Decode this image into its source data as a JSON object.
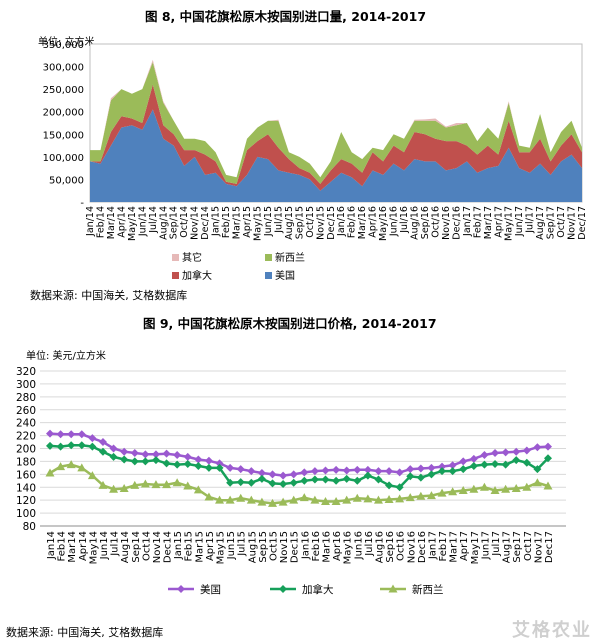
{
  "chart_data": [
    {
      "type": "area",
      "stacked": true,
      "title": "图 8, 中国花旗松原木按国别进口量, 2014-2017",
      "unit_label": "单位: 立方米",
      "ylim": [
        0,
        350000
      ],
      "yticks": [
        0,
        50000,
        100000,
        150000,
        200000,
        250000,
        300000,
        350000
      ],
      "ytick_labels": [
        "-",
        "50,000",
        "100,000",
        "150,000",
        "200,000",
        "250,000",
        "300,000",
        "350,000"
      ],
      "categories": [
        "Jan/14",
        "Feb/14",
        "Mar/14",
        "Apr/14",
        "May/14",
        "Jun/14",
        "Jul/14",
        "Aug/14",
        "Sep/14",
        "Oct/14",
        "Nov/14",
        "Dec/14",
        "Jan/15",
        "Feb/15",
        "Mar/15",
        "Apr/15",
        "May/15",
        "Jun/15",
        "Jul/15",
        "Aug/15",
        "Sep/15",
        "Oct/15",
        "Nov/15",
        "Dec/15",
        "Jan/16",
        "Feb/16",
        "Mar/16",
        "Apr/16",
        "May/16",
        "Jun/16",
        "Jul/16",
        "Aug/16",
        "Sep/16",
        "Oct/16",
        "Nov/16",
        "Dec/16",
        "Jan/17",
        "Feb/17",
        "Mar/17",
        "Apr/17",
        "May/17",
        "Jun/17",
        "Jul/17",
        "Aug/17",
        "Sep/17",
        "Oct/17",
        "Nov/17",
        "Dec/17"
      ],
      "legend_position": "bottom",
      "series": [
        {
          "name": "美国",
          "color": "#4F81BD",
          "values": [
            90000,
            85000,
            125000,
            165000,
            170000,
            160000,
            205000,
            140000,
            125000,
            80000,
            100000,
            60000,
            65000,
            40000,
            35000,
            60000,
            100000,
            95000,
            70000,
            65000,
            60000,
            50000,
            25000,
            45000,
            65000,
            55000,
            35000,
            70000,
            60000,
            85000,
            70000,
            95000,
            90000,
            90000,
            70000,
            75000,
            90000,
            65000,
            75000,
            80000,
            120000,
            75000,
            65000,
            85000,
            60000,
            90000,
            105000,
            75000
          ]
        },
        {
          "name": "加拿大",
          "color": "#C0504D",
          "values": [
            0,
            5000,
            30000,
            25000,
            15000,
            15000,
            55000,
            30000,
            25000,
            35000,
            15000,
            45000,
            25000,
            5000,
            5000,
            55000,
            35000,
            55000,
            50000,
            30000,
            15000,
            15000,
            15000,
            25000,
            30000,
            30000,
            30000,
            40000,
            30000,
            40000,
            40000,
            60000,
            60000,
            50000,
            65000,
            60000,
            35000,
            40000,
            50000,
            25000,
            60000,
            35000,
            45000,
            55000,
            30000,
            35000,
            45000,
            35000
          ]
        },
        {
          "name": "新西兰",
          "color": "#9BBB59",
          "values": [
            25000,
            25000,
            70000,
            60000,
            55000,
            75000,
            50000,
            50000,
            30000,
            25000,
            25000,
            30000,
            20000,
            15000,
            15000,
            25000,
            30000,
            30000,
            60000,
            15000,
            25000,
            20000,
            15000,
            20000,
            60000,
            25000,
            30000,
            10000,
            25000,
            25000,
            30000,
            25000,
            30000,
            40000,
            30000,
            35000,
            50000,
            30000,
            40000,
            35000,
            40000,
            15000,
            10000,
            55000,
            20000,
            30000,
            30000,
            10000
          ]
        },
        {
          "name": "其它",
          "color": "#E6B9B8",
          "values": [
            0,
            0,
            5000,
            0,
            0,
            0,
            5000,
            3000,
            0,
            0,
            0,
            0,
            0,
            0,
            0,
            0,
            0,
            0,
            2000,
            0,
            0,
            0,
            0,
            0,
            0,
            0,
            0,
            0,
            0,
            0,
            0,
            2000,
            3000,
            5000,
            2000,
            5000,
            0,
            0,
            0,
            0,
            3000,
            0,
            0,
            0,
            0,
            0,
            0,
            0
          ]
        }
      ],
      "source": "数据来源: 中国海关, 艾格数据库"
    },
    {
      "type": "line",
      "title": "图 9, 中国花旗松原木按国别进口价格, 2014-2017",
      "unit_label": "单位: 美元/立方米",
      "ylim": [
        80,
        320
      ],
      "yticks": [
        80,
        100,
        120,
        140,
        160,
        180,
        200,
        220,
        240,
        260,
        280,
        300,
        320
      ],
      "categories": [
        "Jan14",
        "Feb14",
        "Mar14",
        "Apr14",
        "May14",
        "Jun14",
        "Jul14",
        "Aug14",
        "Sep14",
        "Oct14",
        "Nov14",
        "Dec14",
        "Jan15",
        "Feb15",
        "Mar15",
        "Apr15",
        "May15",
        "Jun15",
        "Jul15",
        "Aug15",
        "Sep15",
        "Oct15",
        "Nov15",
        "Dec15",
        "Jan16",
        "Feb16",
        "Mar16",
        "Apr16",
        "May16",
        "Jun16",
        "Jul16",
        "Aug16",
        "Sep16",
        "Oct16",
        "Nov16",
        "Dec16",
        "Jan17",
        "Feb17",
        "Mar17",
        "Apr17",
        "May17",
        "Jun17",
        "Jul17",
        "Aug17",
        "Sep17",
        "Oct17",
        "Nov17",
        "Dec17"
      ],
      "legend_position": "bottom",
      "series": [
        {
          "name": "美国",
          "color": "#9B59D0",
          "marker": "diamond",
          "values": [
            223,
            222,
            222,
            222,
            216,
            210,
            200,
            195,
            193,
            191,
            191,
            192,
            190,
            187,
            183,
            181,
            177,
            170,
            168,
            165,
            162,
            160,
            158,
            160,
            163,
            165,
            166,
            167,
            166,
            167,
            167,
            165,
            165,
            163,
            168,
            169,
            170,
            172,
            174,
            180,
            184,
            190,
            193,
            194,
            195,
            197,
            202,
            203
          ]
        },
        {
          "name": "加拿大",
          "color": "#16A05A",
          "marker": "diamond",
          "values": [
            204,
            203,
            205,
            205,
            203,
            195,
            187,
            183,
            180,
            180,
            182,
            177,
            175,
            176,
            173,
            170,
            170,
            147,
            148,
            147,
            153,
            146,
            145,
            147,
            150,
            152,
            152,
            150,
            153,
            150,
            158,
            152,
            143,
            140,
            157,
            155,
            160,
            165,
            165,
            168,
            173,
            175,
            176,
            175,
            182,
            178,
            168,
            185
          ]
        },
        {
          "name": "新西兰",
          "color": "#9BBB59",
          "marker": "triangle",
          "values": [
            162,
            172,
            175,
            170,
            158,
            143,
            137,
            138,
            143,
            145,
            144,
            144,
            147,
            142,
            136,
            125,
            120,
            120,
            123,
            120,
            117,
            115,
            117,
            120,
            124,
            120,
            118,
            118,
            120,
            123,
            122,
            120,
            121,
            122,
            124,
            126,
            127,
            131,
            133,
            135,
            137,
            140,
            135,
            137,
            138,
            140,
            147,
            142
          ]
        }
      ],
      "source": "数据来源: 中国海关, 艾格数据库"
    }
  ],
  "watermark": "艾格农业"
}
